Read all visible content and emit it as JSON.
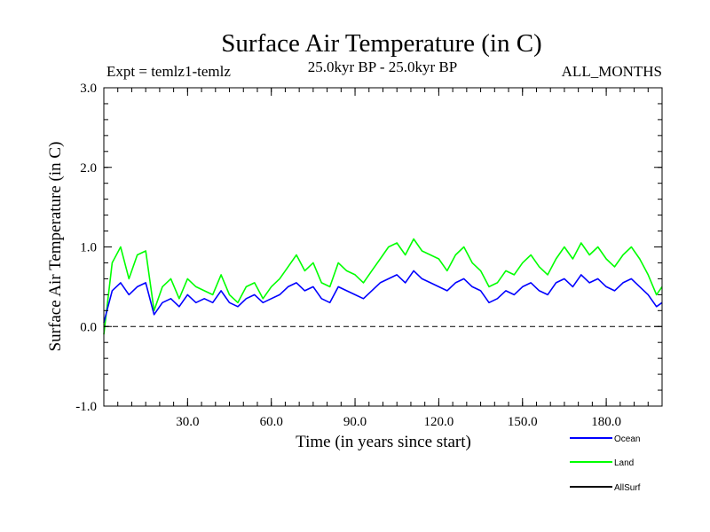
{
  "chart_data": {
    "type": "line",
    "title": "Surface Air Temperature (in C)",
    "subtitle_left": "Expt = temlz1-temlz",
    "subtitle_center": "25.0kyr BP - 25.0kyr BP",
    "subtitle_right": "ALL_MONTHS",
    "xlabel": "Time (in years since start)",
    "ylabel": "Surface Air Temperature (in C)",
    "xlim": [
      0,
      200
    ],
    "ylim": [
      -1.0,
      3.0
    ],
    "x_ticks": [
      30,
      60,
      90,
      120,
      150,
      180
    ],
    "x_tick_labels": [
      "30.0",
      "60.0",
      "90.0",
      "120.0",
      "150.0",
      "180.0"
    ],
    "y_ticks": [
      -1.0,
      0.0,
      1.0,
      2.0,
      3.0
    ],
    "y_tick_labels": [
      "-1.0",
      "0.0",
      "1.0",
      "2.0",
      "3.0"
    ],
    "zero_line": 0.0,
    "legend_position": "bottom-right",
    "series_colors": {
      "Ocean": "#0000ff",
      "Land": "#00ff00",
      "AllSurf": "#000000"
    },
    "series": [
      {
        "name": "Ocean",
        "color": "#0000ff",
        "x": [
          0,
          3,
          6,
          9,
          12,
          15,
          18,
          21,
          24,
          27,
          30,
          33,
          36,
          39,
          42,
          45,
          48,
          51,
          54,
          57,
          60,
          63,
          66,
          69,
          72,
          75,
          78,
          81,
          84,
          87,
          90,
          93,
          96,
          99,
          102,
          105,
          108,
          111,
          114,
          117,
          120,
          123,
          126,
          129,
          132,
          135,
          138,
          141,
          144,
          147,
          150,
          153,
          156,
          159,
          162,
          165,
          168,
          171,
          174,
          177,
          180,
          183,
          186,
          189,
          192,
          195,
          198,
          200
        ],
        "values": [
          0.05,
          0.45,
          0.55,
          0.4,
          0.5,
          0.55,
          0.15,
          0.3,
          0.35,
          0.25,
          0.4,
          0.3,
          0.35,
          0.3,
          0.45,
          0.3,
          0.25,
          0.35,
          0.4,
          0.3,
          0.35,
          0.4,
          0.5,
          0.55,
          0.45,
          0.5,
          0.35,
          0.3,
          0.5,
          0.45,
          0.4,
          0.35,
          0.45,
          0.55,
          0.6,
          0.65,
          0.55,
          0.7,
          0.6,
          0.55,
          0.5,
          0.45,
          0.55,
          0.6,
          0.5,
          0.45,
          0.3,
          0.35,
          0.45,
          0.4,
          0.5,
          0.55,
          0.45,
          0.4,
          0.55,
          0.6,
          0.5,
          0.65,
          0.55,
          0.6,
          0.5,
          0.45,
          0.55,
          0.6,
          0.5,
          0.4,
          0.25,
          0.3
        ]
      },
      {
        "name": "Land",
        "color": "#00ff00",
        "x": [
          0,
          3,
          6,
          9,
          12,
          15,
          18,
          21,
          24,
          27,
          30,
          33,
          36,
          39,
          42,
          45,
          48,
          51,
          54,
          57,
          60,
          63,
          66,
          69,
          72,
          75,
          78,
          81,
          84,
          87,
          90,
          93,
          96,
          99,
          102,
          105,
          108,
          111,
          114,
          117,
          120,
          123,
          126,
          129,
          132,
          135,
          138,
          141,
          144,
          147,
          150,
          153,
          156,
          159,
          162,
          165,
          168,
          171,
          174,
          177,
          180,
          183,
          186,
          189,
          192,
          195,
          198,
          200
        ],
        "values": [
          -0.1,
          0.8,
          1.0,
          0.6,
          0.9,
          0.95,
          0.2,
          0.5,
          0.6,
          0.35,
          0.6,
          0.5,
          0.45,
          0.4,
          0.65,
          0.4,
          0.3,
          0.5,
          0.55,
          0.35,
          0.5,
          0.6,
          0.75,
          0.9,
          0.7,
          0.8,
          0.55,
          0.5,
          0.8,
          0.7,
          0.65,
          0.55,
          0.7,
          0.85,
          1.0,
          1.05,
          0.9,
          1.1,
          0.95,
          0.9,
          0.85,
          0.7,
          0.9,
          1.0,
          0.8,
          0.7,
          0.5,
          0.55,
          0.7,
          0.65,
          0.8,
          0.9,
          0.75,
          0.65,
          0.85,
          1.0,
          0.85,
          1.05,
          0.9,
          1.0,
          0.85,
          0.75,
          0.9,
          1.0,
          0.85,
          0.65,
          0.4,
          0.5
        ]
      },
      {
        "name": "AllSurf",
        "color": "#000000",
        "x": [],
        "values": []
      }
    ]
  }
}
